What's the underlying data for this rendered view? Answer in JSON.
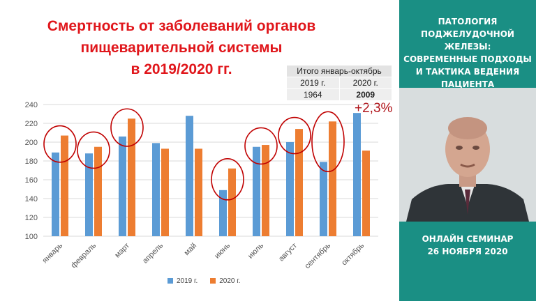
{
  "slide": {
    "title_lines": [
      "Смертность от заболеваний органов",
      "пищеварительной системы",
      "в 2019/2020 гг."
    ],
    "summary": {
      "header": "Итого январь-октябрь",
      "col1_label": "2019 г.",
      "col2_label": "2020 г.",
      "col1_value": "1964",
      "col2_value": "2009"
    },
    "change": "+2,3%"
  },
  "chart_data": {
    "type": "bar",
    "categories": [
      "январь",
      "февраль",
      "март",
      "апрель",
      "май",
      "июнь",
      "июль",
      "август",
      "сентябрь",
      "октябрь"
    ],
    "series": [
      {
        "name": "2019 г.",
        "values": [
          189,
          188,
          206,
          199,
          228,
          149,
          195,
          200,
          179,
          231
        ]
      },
      {
        "name": "2020 г.",
        "values": [
          207,
          195,
          225,
          193,
          193,
          172,
          197,
          214,
          222,
          191
        ]
      }
    ],
    "ylim": [
      100,
      240
    ],
    "yticks": [
      100,
      120,
      140,
      160,
      180,
      200,
      220,
      240
    ],
    "highlighted": [
      "январь",
      "февраль",
      "март",
      "июнь",
      "июль",
      "август",
      "сентябрь"
    ],
    "grid": true,
    "legend": "bottom",
    "colors": {
      "2019": "#5b9bd5",
      "2020": "#ed7d31",
      "highlight": "#c00000"
    }
  },
  "sidebar": {
    "title_lines": [
      "ПАТОЛОГИЯ",
      "ПОДЖЕЛУДОЧНОЙ ЖЕЛЕЗЫ:",
      "СОВРЕМЕННЫЕ ПОДХОДЫ",
      "И ТАКТИКА ВЕДЕНИЯ ПАЦИЕНТА"
    ],
    "seminar_lines": [
      "ОНЛАЙН СЕМИНАР",
      "26 НОЯБРЯ 2020"
    ],
    "bg_color": "#1a8f84"
  }
}
